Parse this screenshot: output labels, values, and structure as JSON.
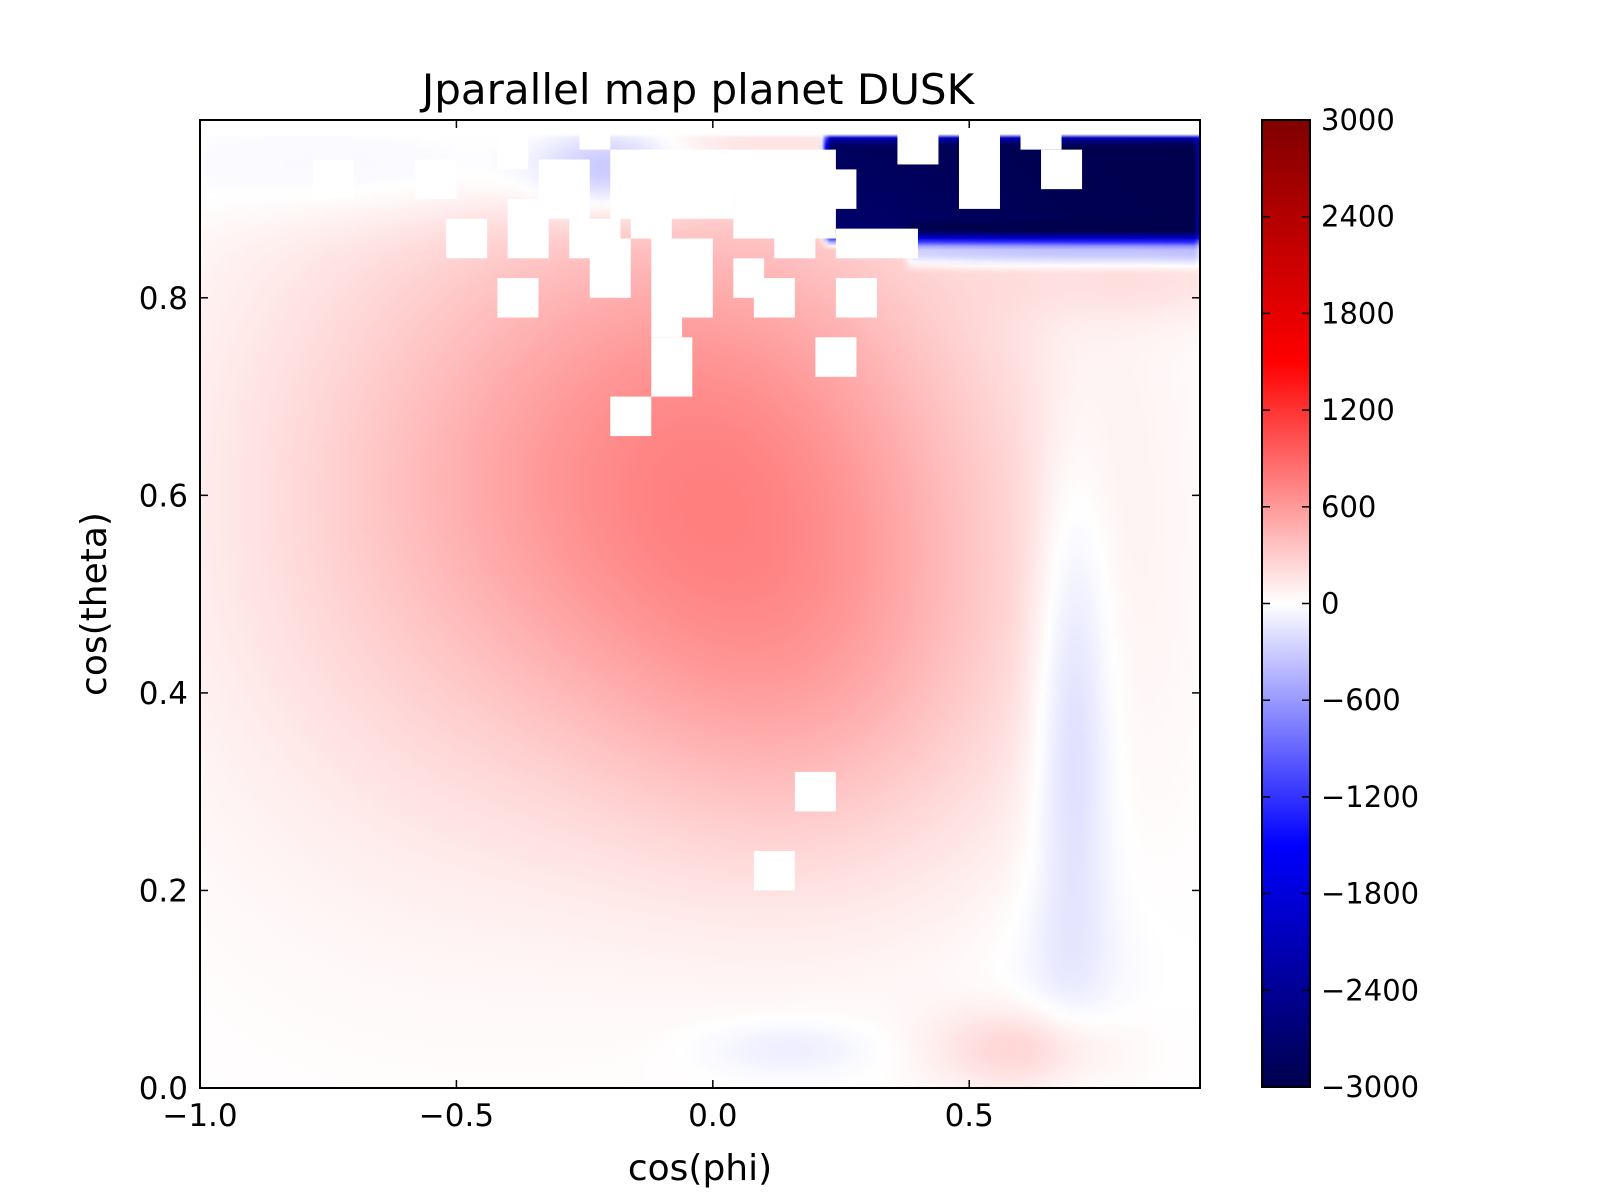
{
  "chart_data": {
    "type": "heatmap",
    "title": "Jparallel map planet DUSK",
    "xlabel": "cos(phi)",
    "ylabel": "cos(theta)",
    "xlim": [
      -1.0,
      0.95
    ],
    "ylim": [
      0.0,
      0.98
    ],
    "x_ticks": [
      -1.0,
      -0.5,
      0.0,
      0.5
    ],
    "x_tick_labels": [
      "−1.0",
      "−0.5",
      "0.0",
      "0.5"
    ],
    "y_ticks": [
      0.0,
      0.2,
      0.4,
      0.6,
      0.8
    ],
    "y_tick_labels": [
      "0.0",
      "0.2",
      "0.4",
      "0.6",
      "0.8"
    ],
    "colormap": "seismic",
    "colormap_stops": [
      "#00004c",
      "#0000ff",
      "#ffffff",
      "#ff0000",
      "#800000"
    ],
    "colorbar": {
      "range": [
        -3000,
        3000
      ],
      "ticks": [
        3000,
        2400,
        1800,
        1200,
        600,
        0,
        -600,
        -1200,
        -1800,
        -2400,
        -3000
      ],
      "tick_labels": [
        "3000",
        "2400",
        "1800",
        "1200",
        "600",
        "0",
        "−600",
        "−1200",
        "−1800",
        "−2400",
        "−3000"
      ]
    },
    "features": [
      {
        "shape": "gaussian",
        "center": [
          0.02,
          0.64
        ],
        "sigma": [
          0.38,
          0.2
        ],
        "value": 620
      },
      {
        "shape": "gaussian",
        "center": [
          -0.55,
          0.58
        ],
        "sigma": [
          0.35,
          0.25
        ],
        "value": 220
      },
      {
        "shape": "gaussian",
        "center": [
          0.2,
          0.4
        ],
        "sigma": [
          0.3,
          0.15
        ],
        "value": 260
      },
      {
        "shape": "gaussian",
        "center": [
          0.7,
          0.38
        ],
        "sigma": [
          0.055,
          0.18
        ],
        "value": -280
      },
      {
        "shape": "gaussian",
        "center": [
          0.68,
          0.12
        ],
        "sigma": [
          0.1,
          0.06
        ],
        "value": -60
      },
      {
        "shape": "gaussian",
        "center": [
          0.6,
          0.04
        ],
        "sigma": [
          0.12,
          0.03
        ],
        "value": 250
      },
      {
        "shape": "gaussian",
        "center": [
          0.15,
          0.04
        ],
        "sigma": [
          0.12,
          0.02
        ],
        "value": -120
      },
      {
        "shape": "gaussian",
        "center": [
          0.85,
          0.82
        ],
        "sigma": [
          0.2,
          0.03
        ],
        "value": 150
      },
      {
        "shape": "gaussian",
        "center": [
          -0.5,
          0.93
        ],
        "sigma": [
          0.35,
          0.04
        ],
        "value": -170
      },
      {
        "shape": "gaussian",
        "center": [
          -0.2,
          0.93
        ],
        "sigma": [
          0.1,
          0.03
        ],
        "value": -420
      },
      {
        "shape": "band",
        "x_range": [
          0.22,
          0.95
        ],
        "y_range": [
          0.86,
          0.965
        ],
        "value": -3000
      },
      {
        "shape": "band",
        "x_range": [
          0.38,
          0.95
        ],
        "y_range": [
          0.835,
          0.87
        ],
        "value": -500
      }
    ],
    "masked_cells": [
      {
        "x": [
          -0.2,
          -0.12
        ],
        "y": [
          0.66,
          0.7
        ]
      },
      {
        "x": [
          -0.12,
          -0.04
        ],
        "y": [
          0.7,
          0.76
        ]
      },
      {
        "x": [
          -0.12,
          -0.06
        ],
        "y": [
          0.76,
          0.86
        ]
      },
      {
        "x": [
          -0.08,
          0.0
        ],
        "y": [
          0.78,
          0.86
        ]
      },
      {
        "x": [
          0.2,
          0.28
        ],
        "y": [
          0.72,
          0.76
        ]
      },
      {
        "x": [
          -0.42,
          -0.34
        ],
        "y": [
          0.78,
          0.82
        ]
      },
      {
        "x": [
          -0.24,
          -0.16
        ],
        "y": [
          0.8,
          0.86
        ]
      },
      {
        "x": [
          0.04,
          0.1
        ],
        "y": [
          0.8,
          0.84
        ]
      },
      {
        "x": [
          0.08,
          0.16
        ],
        "y": [
          0.78,
          0.82
        ]
      },
      {
        "x": [
          0.24,
          0.32
        ],
        "y": [
          0.78,
          0.82
        ]
      },
      {
        "x": [
          -0.52,
          -0.44
        ],
        "y": [
          0.84,
          0.88
        ]
      },
      {
        "x": [
          -0.4,
          -0.32
        ],
        "y": [
          0.84,
          0.9
        ]
      },
      {
        "x": [
          -0.28,
          -0.18
        ],
        "y": [
          0.84,
          0.88
        ]
      },
      {
        "x": [
          -0.16,
          -0.08
        ],
        "y": [
          0.86,
          0.92
        ]
      },
      {
        "x": [
          0.12,
          0.2
        ],
        "y": [
          0.84,
          0.88
        ]
      },
      {
        "x": [
          0.24,
          0.4
        ],
        "y": [
          0.84,
          0.87
        ]
      },
      {
        "x": [
          -0.78,
          -0.7
        ],
        "y": [
          0.9,
          0.94
        ]
      },
      {
        "x": [
          -0.58,
          -0.5
        ],
        "y": [
          0.9,
          0.94
        ]
      },
      {
        "x": [
          -0.34,
          -0.24
        ],
        "y": [
          0.88,
          0.94
        ]
      },
      {
        "x": [
          -0.2,
          0.04
        ],
        "y": [
          0.88,
          0.95
        ]
      },
      {
        "x": [
          0.04,
          0.24
        ],
        "y": [
          0.86,
          0.95
        ]
      },
      {
        "x": [
          0.22,
          0.28
        ],
        "y": [
          0.89,
          0.93
        ]
      },
      {
        "x": [
          -0.42,
          -0.36
        ],
        "y": [
          0.93,
          0.97
        ]
      },
      {
        "x": [
          -0.26,
          -0.2
        ],
        "y": [
          0.95,
          0.98
        ]
      },
      {
        "x": [
          0.36,
          0.44
        ],
        "y": [
          0.935,
          0.975
        ]
      },
      {
        "x": [
          0.48,
          0.56
        ],
        "y": [
          0.89,
          0.975
        ]
      },
      {
        "x": [
          0.64,
          0.72
        ],
        "y": [
          0.91,
          0.95
        ]
      },
      {
        "x": [
          0.6,
          0.68
        ],
        "y": [
          0.95,
          0.98
        ]
      },
      {
        "x": [
          0.16,
          0.24
        ],
        "y": [
          0.28,
          0.32
        ]
      },
      {
        "x": [
          0.08,
          0.16
        ],
        "y": [
          0.2,
          0.24
        ]
      }
    ]
  }
}
